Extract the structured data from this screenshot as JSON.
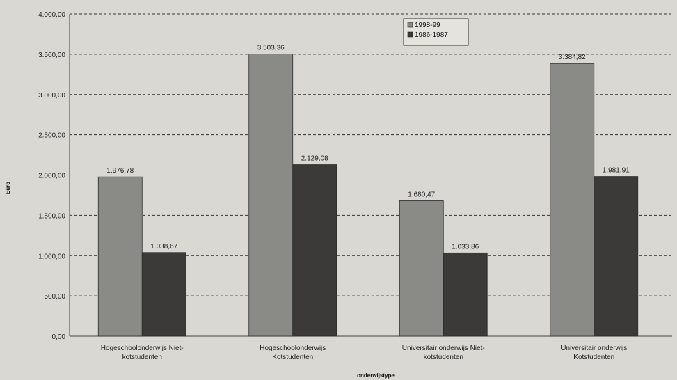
{
  "chart_data": {
    "type": "bar",
    "title": "",
    "xlabel": "onderwijstype",
    "ylabel": "Euro",
    "ylim": [
      0,
      4000
    ],
    "yticks": [
      "0,00",
      "500,00",
      "1.000,00",
      "1.500,00",
      "2.000,00",
      "2.500,00",
      "3.000,00",
      "3.500,00",
      "4.000,00"
    ],
    "ytick_values": [
      0,
      500,
      1000,
      1500,
      2000,
      2500,
      3000,
      3500,
      4000
    ],
    "grid": true,
    "legend_position": "top-center",
    "categories": [
      [
        "Hogeschoolonderwijs  Niet-",
        "kotstudenten"
      ],
      [
        "Hogeschoolonderwijs",
        "Kotstudenten"
      ],
      [
        "Universitair onderwijs  Niet-",
        "kotstudenten"
      ],
      [
        "Universitair onderwijs",
        "Kotstudenten"
      ]
    ],
    "series": [
      {
        "name": "1998-99",
        "values": [
          1976.78,
          3503.36,
          1680.47,
          3384.82
        ],
        "labels": [
          "1.976,78",
          "3.503,36",
          "1.680,47",
          "3.384,82"
        ],
        "color": "#8a8a86"
      },
      {
        "name": "1986-1987",
        "values": [
          1038.67,
          2129.08,
          1033.86,
          1981.91
        ],
        "labels": [
          "1.038,67",
          "2.129,08",
          "1.033,86",
          "1.981,91"
        ],
        "color": "#3c3a38"
      }
    ]
  }
}
